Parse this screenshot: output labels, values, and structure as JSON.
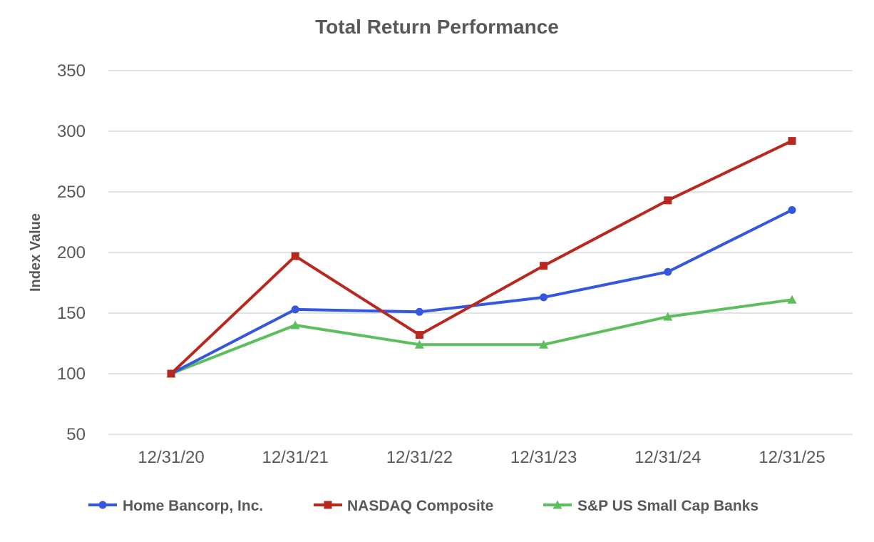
{
  "chart_data": {
    "type": "line",
    "title": "Total Return Performance",
    "xlabel": "",
    "ylabel": "Index Value",
    "categories": [
      "12/31/20",
      "12/31/21",
      "12/31/22",
      "12/31/23",
      "12/31/24",
      "12/31/25"
    ],
    "ylim": [
      50,
      350
    ],
    "yticks": [
      50,
      100,
      150,
      200,
      250,
      300,
      350
    ],
    "grid": true,
    "legend_position": "bottom",
    "series": [
      {
        "name": "Home Bancorp, Inc.",
        "values": [
          100,
          153,
          151,
          163,
          184,
          235
        ],
        "color": "#3557e0",
        "marker": "circle"
      },
      {
        "name": "NASDAQ Composite",
        "values": [
          100,
          197,
          132,
          189,
          243,
          292
        ],
        "color": "#b8281f",
        "marker": "square"
      },
      {
        "name": "S&P US Small Cap Banks",
        "values": [
          100,
          140,
          124,
          124,
          147,
          161
        ],
        "color": "#5cbf5c",
        "marker": "triangle"
      }
    ]
  }
}
